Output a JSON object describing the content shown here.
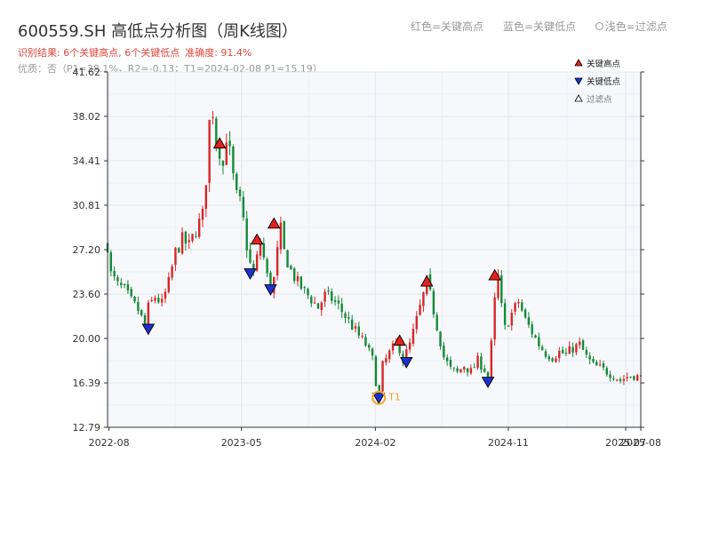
{
  "header": {
    "title": "600559.SH 高低点分析图（周K线图）",
    "result_label": "识别结果: 6个关键高点, 6个关键低点",
    "accuracy_label": "准确度: 91.4%",
    "quality_label": "优质：否（P1=38.1%，R2=-0.13；T1=2024-02-08 P1=15.19）"
  },
  "color_legend": {
    "red": "红色=关键高点",
    "blue": "蓝色=关键低点",
    "filtered": "浅色=过滤点"
  },
  "colors": {
    "up": "#d62728",
    "down": "#138a36",
    "high_marker": "#e8201c",
    "low_marker": "#1f2fd6",
    "t1_ring": "#f5a623",
    "plot_bg": "#f6f8fb"
  },
  "chart_data": {
    "type": "candlestick",
    "title": "600559.SH 高低点分析图（周K线图）",
    "xlabel": "",
    "ylabel": "",
    "ylim": [
      12.79,
      41.62
    ],
    "xlim": [
      "2022-07-29",
      "2025-08-01"
    ],
    "y_ticks": [
      12.79,
      16.39,
      20.0,
      23.6,
      27.2,
      30.81,
      34.41,
      38.02,
      41.62
    ],
    "x_ticks": [
      {
        "date": "2022-08-01",
        "label": "2022-08"
      },
      {
        "date": "2023-05-01",
        "label": "2023-05"
      },
      {
        "date": "2024-02-01",
        "label": "2024-02"
      },
      {
        "date": "2024-11-01",
        "label": "2024-11"
      },
      {
        "date": "2025-07-01",
        "label": "2025-07"
      },
      {
        "date": "2025-08-01",
        "label": "2025-08"
      }
    ],
    "grid": true,
    "legend_position": "top-right",
    "legend": [
      "关键高点",
      "关键低点",
      "过滤点"
    ],
    "price_path": [
      [
        "2022-07-29",
        27.6
      ],
      [
        "2022-08-05",
        25.2
      ],
      [
        "2022-08-19",
        24.3
      ],
      [
        "2022-09-02",
        23.9
      ],
      [
        "2022-09-16",
        23.0
      ],
      [
        "2022-09-30",
        22.3
      ],
      [
        "2022-10-14",
        21.0
      ],
      [
        "2022-10-21",
        22.5
      ],
      [
        "2022-11-04",
        23.4
      ],
      [
        "2022-11-18",
        22.8
      ],
      [
        "2022-12-02",
        24.5
      ],
      [
        "2022-12-16",
        27.0
      ],
      [
        "2022-12-30",
        28.0
      ],
      [
        "2023-01-13",
        27.5
      ],
      [
        "2023-01-27",
        28.8
      ],
      [
        "2023-02-10",
        30.0
      ],
      [
        "2023-02-17",
        33.0
      ],
      [
        "2023-02-24",
        37.5
      ],
      [
        "2023-03-03",
        38.5
      ],
      [
        "2023-03-10",
        36.0
      ],
      [
        "2023-03-17",
        35.3
      ],
      [
        "2023-03-24",
        34.0
      ],
      [
        "2023-03-31",
        36.5
      ],
      [
        "2023-04-07",
        35.0
      ],
      [
        "2023-04-14",
        33.0
      ],
      [
        "2023-04-21",
        31.5
      ],
      [
        "2023-04-28",
        31.0
      ],
      [
        "2023-05-05",
        29.5
      ],
      [
        "2023-05-12",
        27.5
      ],
      [
        "2023-05-19",
        26.0
      ],
      [
        "2023-05-26",
        25.2
      ],
      [
        "2023-06-02",
        26.5
      ],
      [
        "2023-06-09",
        27.8
      ],
      [
        "2023-06-16",
        26.5
      ],
      [
        "2023-06-23",
        25.0
      ],
      [
        "2023-06-30",
        24.0
      ],
      [
        "2023-07-07",
        24.8
      ],
      [
        "2023-07-14",
        27.0
      ],
      [
        "2023-07-21",
        28.8
      ],
      [
        "2023-07-28",
        27.0
      ],
      [
        "2023-08-11",
        25.5
      ],
      [
        "2023-08-25",
        24.5
      ],
      [
        "2023-09-08",
        23.8
      ],
      [
        "2023-09-22",
        23.2
      ],
      [
        "2023-10-06",
        22.5
      ],
      [
        "2023-10-20",
        23.5
      ],
      [
        "2023-11-03",
        23.2
      ],
      [
        "2023-11-17",
        22.6
      ],
      [
        "2023-12-01",
        21.8
      ],
      [
        "2023-12-15",
        21.0
      ],
      [
        "2023-12-29",
        20.2
      ],
      [
        "2024-01-12",
        19.5
      ],
      [
        "2024-01-26",
        18.3
      ],
      [
        "2024-02-02",
        16.5
      ],
      [
        "2024-02-08",
        15.2
      ],
      [
        "2024-02-16",
        17.8
      ],
      [
        "2024-03-01",
        18.8
      ],
      [
        "2024-03-15",
        19.6
      ],
      [
        "2024-03-22",
        19.2
      ],
      [
        "2024-03-29",
        18.2
      ],
      [
        "2024-04-12",
        19.5
      ],
      [
        "2024-04-26",
        21.5
      ],
      [
        "2024-05-10",
        23.5
      ],
      [
        "2024-05-17",
        24.6
      ],
      [
        "2024-05-24",
        23.5
      ],
      [
        "2024-06-07",
        21.0
      ],
      [
        "2024-06-21",
        18.5
      ],
      [
        "2024-07-05",
        17.5
      ],
      [
        "2024-07-19",
        17.2
      ],
      [
        "2024-08-02",
        17.8
      ],
      [
        "2024-08-16",
        17.3
      ],
      [
        "2024-08-30",
        18.2
      ],
      [
        "2024-09-13",
        17.5
      ],
      [
        "2024-09-20",
        16.8
      ],
      [
        "2024-09-27",
        19.5
      ],
      [
        "2024-10-04",
        23.0
      ],
      [
        "2024-10-11",
        25.0
      ],
      [
        "2024-10-18",
        22.5
      ],
      [
        "2024-10-25",
        20.8
      ],
      [
        "2024-11-08",
        22.0
      ],
      [
        "2024-11-22",
        23.0
      ],
      [
        "2024-12-06",
        21.5
      ],
      [
        "2024-12-20",
        20.5
      ],
      [
        "2025-01-03",
        19.5
      ],
      [
        "2025-01-17",
        18.8
      ],
      [
        "2025-01-31",
        18.5
      ],
      [
        "2025-02-14",
        18.9
      ],
      [
        "2025-02-28",
        18.7
      ],
      [
        "2025-03-14",
        19.2
      ],
      [
        "2025-03-28",
        19.5
      ],
      [
        "2025-04-11",
        18.5
      ],
      [
        "2025-04-25",
        17.8
      ],
      [
        "2025-05-09",
        17.6
      ],
      [
        "2025-05-23",
        17.3
      ],
      [
        "2025-06-06",
        17.0
      ],
      [
        "2025-06-20",
        16.6
      ],
      [
        "2025-07-04",
        16.9
      ],
      [
        "2025-07-18",
        17.0
      ],
      [
        "2025-08-01",
        16.8
      ]
    ],
    "key_highs": [
      {
        "date": "2023-03-17",
        "value": 35.8
      },
      {
        "date": "2023-06-02",
        "value": 28.0
      },
      {
        "date": "2023-07-07",
        "value": 29.3
      },
      {
        "date": "2024-03-22",
        "value": 19.8
      },
      {
        "date": "2024-05-17",
        "value": 24.6
      },
      {
        "date": "2024-10-04",
        "value": 25.1
      }
    ],
    "key_lows": [
      {
        "date": "2022-10-21",
        "value": 20.8
      },
      {
        "date": "2023-05-19",
        "value": 25.3
      },
      {
        "date": "2023-06-30",
        "value": 24.0
      },
      {
        "date": "2024-02-08",
        "value": 15.2
      },
      {
        "date": "2024-04-05",
        "value": 18.1
      },
      {
        "date": "2024-09-20",
        "value": 16.5
      }
    ],
    "annotations": [
      {
        "date": "2024-02-08",
        "value": 15.19,
        "text": "T1"
      }
    ]
  }
}
